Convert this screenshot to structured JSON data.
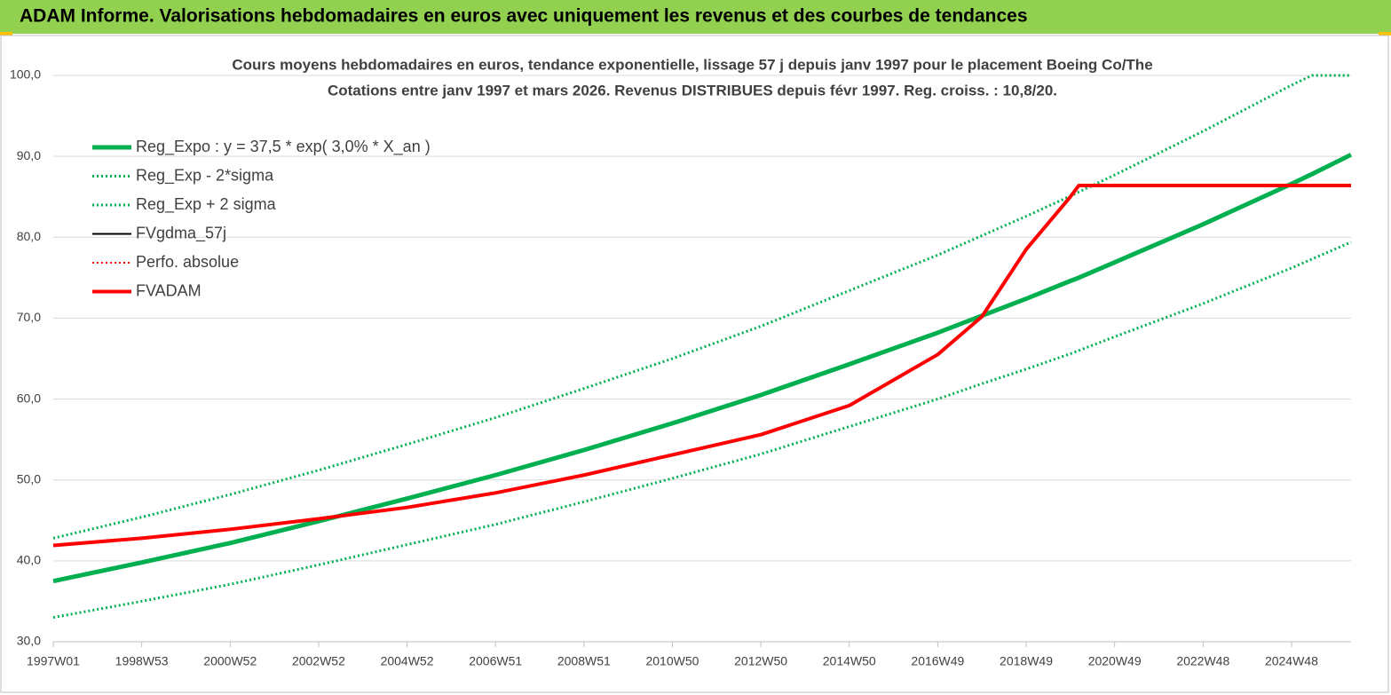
{
  "header": {
    "title": "ADAM Informe. Valorisations hebdomadaires en euros avec uniquement les revenus et des courbes de tendances"
  },
  "chart_data": {
    "type": "line",
    "title": "Cours moyens hebdomadaires en euros, tendance exponentielle, lissage 57 j depuis janv 1997 pour le placement Boeing Co/The",
    "subtitle": "Cotations entre janv 1997 et mars 2026. Revenus DISTRIBUES depuis févr 1997. Reg. croiss. : 10,8/20.",
    "x": [
      0,
      104,
      208,
      312,
      416,
      520,
      624,
      728,
      832,
      936,
      1040,
      1092,
      1144,
      1196,
      1206,
      1248,
      1352,
      1456,
      1480,
      1526
    ],
    "xlim": [
      0,
      1526
    ],
    "xticks": [
      {
        "value": 0,
        "label": "1997W01"
      },
      {
        "value": 104,
        "label": "1998W53"
      },
      {
        "value": 208,
        "label": "2000W52"
      },
      {
        "value": 312,
        "label": "2002W52"
      },
      {
        "value": 416,
        "label": "2004W52"
      },
      {
        "value": 520,
        "label": "2006W51"
      },
      {
        "value": 624,
        "label": "2008W51"
      },
      {
        "value": 728,
        "label": "2010W50"
      },
      {
        "value": 832,
        "label": "2012W50"
      },
      {
        "value": 936,
        "label": "2014W50"
      },
      {
        "value": 1040,
        "label": "2016W49"
      },
      {
        "value": 1144,
        "label": "2018W49"
      },
      {
        "value": 1248,
        "label": "2020W49"
      },
      {
        "value": 1352,
        "label": "2022W48"
      },
      {
        "value": 1456,
        "label": "2024W48"
      }
    ],
    "ylim": [
      30,
      100
    ],
    "yticks": [
      {
        "value": 30,
        "label": "30,0"
      },
      {
        "value": 40,
        "label": "40,0"
      },
      {
        "value": 50,
        "label": "50,0"
      },
      {
        "value": 60,
        "label": "60,0"
      },
      {
        "value": 70,
        "label": "70,0"
      },
      {
        "value": 80,
        "label": "80,0"
      },
      {
        "value": 90,
        "label": "90,0"
      },
      {
        "value": 100,
        "label": "100,0"
      }
    ],
    "grid": true,
    "series": [
      {
        "name": "Reg_Expo : y = 37,5 * exp( 3,0% *  X_an )",
        "color": "#00b050",
        "style": "solid",
        "width": 5,
        "values": [
          37.5,
          39.8,
          42.2,
          44.9,
          47.7,
          50.6,
          53.7,
          57.0,
          60.5,
          64.3,
          68.2,
          70.3,
          72.4,
          74.6,
          75.0,
          76.9,
          81.6,
          86.6,
          87.8,
          90.2
        ]
      },
      {
        "name": "Reg_Exp - 2*sigma",
        "color": "#00b050",
        "style": "dotted",
        "width": 3,
        "values": [
          33.0,
          35.0,
          37.1,
          39.5,
          42.0,
          44.5,
          47.3,
          50.2,
          53.2,
          56.6,
          60.0,
          61.9,
          63.7,
          65.6,
          66.0,
          67.7,
          71.8,
          76.2,
          77.3,
          79.4
        ]
      },
      {
        "name": "Reg_Exp + 2 sigma",
        "color": "#00b050",
        "style": "dotted",
        "width": 3,
        "values": [
          42.8,
          45.4,
          48.2,
          51.2,
          54.4,
          57.7,
          61.3,
          65.0,
          69.0,
          73.4,
          77.8,
          80.2,
          82.6,
          85.1,
          85.6,
          87.7,
          93.1,
          98.8,
          100,
          100
        ]
      },
      {
        "name": "FVgdma_57j",
        "color": "#000000",
        "style": "solid",
        "width": 2,
        "values": [
          41.9,
          42.8,
          43.9,
          45.2,
          46.6,
          48.4,
          50.6,
          53.1,
          55.6,
          59.2,
          65.5,
          70.2,
          78.5,
          85.0,
          86.4,
          86.4,
          null,
          null,
          null,
          null
        ]
      },
      {
        "name": "Perfo. absolue",
        "color": "#ff0000",
        "style": "dotted",
        "width": 2,
        "values": [
          null,
          null,
          null,
          null,
          null,
          null,
          null,
          null,
          null,
          null,
          null,
          null,
          null,
          null,
          null,
          null,
          null,
          null,
          null,
          null
        ]
      },
      {
        "name": "FVADAM",
        "color": "#ff0000",
        "style": "solid",
        "width": 4,
        "values": [
          41.9,
          42.8,
          43.9,
          45.2,
          46.6,
          48.4,
          50.6,
          53.1,
          55.6,
          59.2,
          65.5,
          70.2,
          78.5,
          85.0,
          86.4,
          86.4,
          86.4,
          86.4,
          86.4,
          86.4
        ]
      }
    ]
  }
}
